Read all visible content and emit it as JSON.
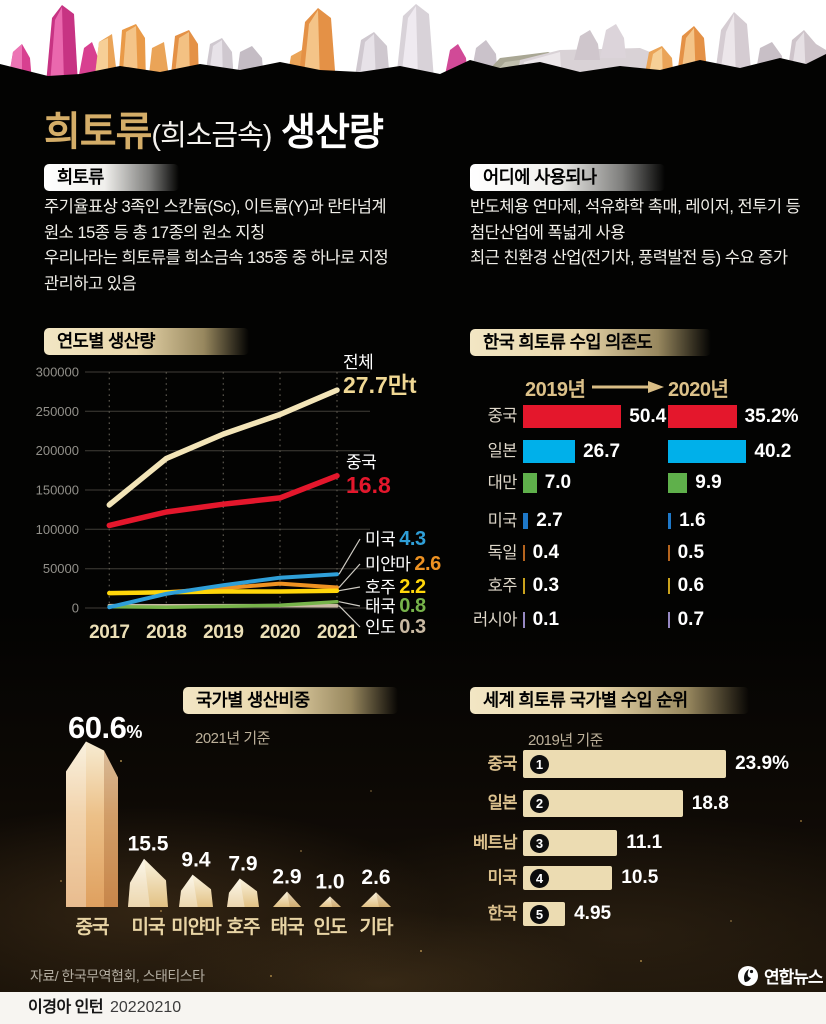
{
  "page": {
    "title": {
      "accent": "희토류",
      "paren": "(희소금속)",
      "rest": " 생산량"
    },
    "source": "자료/ 한국무역협회, 스태티스타",
    "byline": {
      "name": "이경아 인턴",
      "date": "20220210"
    },
    "logo_text": "연합뉴스"
  },
  "colors": {
    "accent_gold": "#d4ad68",
    "pill_cream": "#e8d6aa",
    "total_line": "#f3e5b8",
    "china_red": "#e4172c",
    "japan_cyan": "#00b0ea",
    "taiwan_green": "#5fb04b",
    "usa_blue": "#1e78c8",
    "germany_orange": "#b5641e",
    "australia_yellow": "#caa21c",
    "russia_purple": "#9688c2",
    "rank_bar": "#ecdcb2"
  },
  "info_left": {
    "header": "희토류",
    "lines": [
      "주기율표상 3족인 스칸듐(Sc), 이트륨(Y)과 란타넘계",
      "원소 15종 등 총 17종의 원소 지칭",
      "우리나라는 희토류를 희소금속 135종 중 하나로 지정",
      "관리하고 있음"
    ]
  },
  "info_right": {
    "header": "어디에 사용되나",
    "lines": [
      "반도체용 연마제, 석유화학 촉매, 레이저, 전투기 등",
      "첨단산업에 폭넓게 사용",
      "최근 친환경 산업(전기차, 풍력발전 등) 수요 증가"
    ]
  },
  "chart_data": [
    {
      "type": "line",
      "title": "연도별 생산량",
      "x_labels": [
        "2017",
        "2018",
        "2019",
        "2020",
        "2021"
      ],
      "ylim": [
        0,
        300000
      ],
      "yticks": [
        0,
        50000,
        100000,
        150000,
        200000,
        250000,
        300000
      ],
      "series": [
        {
          "name": "전체",
          "color": "#f3e5b8",
          "values": [
            131000,
            190000,
            221000,
            246000,
            277000
          ],
          "end_label": "27.7만t"
        },
        {
          "name": "중국",
          "color": "#e4172c",
          "values": [
            105000,
            122000,
            132000,
            140000,
            168000
          ],
          "end_label": "16.8"
        },
        {
          "name": "미국",
          "color": "#2f9fd8",
          "values": [
            1000,
            18000,
            29000,
            38500,
            43000
          ],
          "end_label": "4.3"
        },
        {
          "name": "미얀마",
          "color": "#ee9222",
          "values": [
            19000,
            20000,
            25000,
            31000,
            26000
          ],
          "end_label": "2.6"
        },
        {
          "name": "호주",
          "color": "#ffd60a",
          "values": [
            19000,
            20000,
            21000,
            21000,
            22000
          ],
          "end_label": "2.2"
        },
        {
          "name": "태국",
          "color": "#77b34a",
          "values": [
            1600,
            1000,
            2000,
            3600,
            8000
          ],
          "end_label": "0.8"
        },
        {
          "name": "인도",
          "color": "#c9b9a2",
          "values": [
            3000,
            2900,
            3000,
            3000,
            2900
          ],
          "end_label": "0.3"
        }
      ]
    },
    {
      "type": "bar",
      "title": "한국 희토류 수입 의존도",
      "col_headers": [
        "2019년",
        "2020년"
      ],
      "unit": "%",
      "rows": [
        {
          "country": "중국",
          "color": "#e4172c",
          "y2019": 50.4,
          "y2020": 35.2,
          "label_2019": "50.4",
          "label_2020": "35.2%"
        },
        {
          "country": "일본",
          "color": "#00b0ea",
          "y2019": 26.7,
          "y2020": 40.2,
          "label_2019": "26.7",
          "label_2020": "40.2"
        },
        {
          "country": "대만",
          "color": "#5fb04b",
          "y2019": 7.0,
          "y2020": 9.9,
          "label_2019": "7.0",
          "label_2020": "9.9"
        },
        {
          "country": "미국",
          "color": "#1e78c8",
          "y2019": 2.7,
          "y2020": 1.6,
          "label_2019": "2.7",
          "label_2020": "1.6"
        },
        {
          "country": "독일",
          "color": "#b5641e",
          "y2019": 0.4,
          "y2020": 0.5,
          "label_2019": "0.4",
          "label_2020": "0.5"
        },
        {
          "country": "호주",
          "color": "#caa21c",
          "y2019": 0.3,
          "y2020": 0.6,
          "label_2019": "0.3",
          "label_2020": "0.6"
        },
        {
          "country": "러시아",
          "color": "#9688c2",
          "y2019": 0.1,
          "y2020": 0.7,
          "label_2019": "0.1",
          "label_2020": "0.7"
        }
      ]
    },
    {
      "type": "bar",
      "title": "국가별 생산비중",
      "subtitle": "2021년 기준",
      "unit": "%",
      "big_value": "60.6",
      "big_unit": "%",
      "categories": [
        "중국",
        "미국",
        "미얀마",
        "호주",
        "태국",
        "인도",
        "기타"
      ],
      "values": [
        60.6,
        15.5,
        9.4,
        7.9,
        2.9,
        1.0,
        2.6
      ],
      "value_labels": [
        "60.6%",
        "15.5",
        "9.4",
        "7.9",
        "2.9",
        "1.0",
        "2.6"
      ]
    },
    {
      "type": "bar",
      "title": "세계 희토류 국가별 수입 순위",
      "subtitle": "2019년 기준",
      "unit": "%",
      "rows": [
        {
          "rank": "1",
          "country": "중국",
          "value": 23.9,
          "label": "23.9%"
        },
        {
          "rank": "2",
          "country": "일본",
          "value": 18.8,
          "label": "18.8"
        },
        {
          "rank": "3",
          "country": "베트남",
          "value": 11.1,
          "label": "11.1"
        },
        {
          "rank": "4",
          "country": "미국",
          "value": 10.5,
          "label": "10.5"
        },
        {
          "rank": "5",
          "country": "한국",
          "value": 4.95,
          "label": "4.95"
        }
      ]
    }
  ]
}
